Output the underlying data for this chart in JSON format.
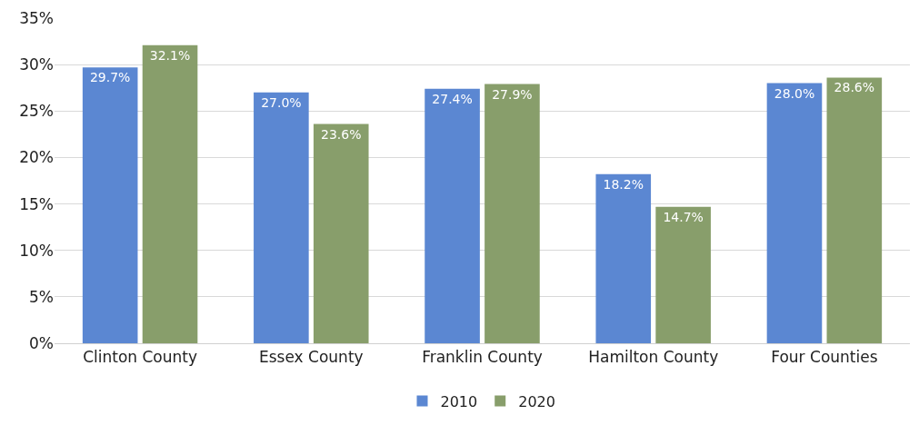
{
  "chart_data": {
    "type": "bar",
    "categories": [
      "Clinton County",
      "Essex County",
      "Franklin County",
      "Hamilton County",
      "Four Counties"
    ],
    "series": [
      {
        "name": "2010",
        "color": "#5b87d2",
        "values": [
          29.7,
          27.0,
          27.4,
          18.2,
          28.0
        ],
        "value_labels": [
          "29.7%",
          "27.0%",
          "27.4%",
          "18.2%",
          "28.0%"
        ]
      },
      {
        "name": "2020",
        "color": "#889e6b",
        "values": [
          32.1,
          23.6,
          27.9,
          14.7,
          28.6
        ],
        "value_labels": [
          "32.1%",
          "23.6%",
          "27.9%",
          "14.7%",
          "28.6%"
        ]
      }
    ],
    "ylim": [
      0,
      35
    ],
    "yticks": [
      {
        "value": 0,
        "label": "0%"
      },
      {
        "value": 5,
        "label": "5%"
      },
      {
        "value": 10,
        "label": "10%"
      },
      {
        "value": 15,
        "label": "15%"
      },
      {
        "value": 20,
        "label": "20%"
      },
      {
        "value": 25,
        "label": "25%"
      },
      {
        "value": 30,
        "label": "30%"
      },
      {
        "value": 35,
        "label": "35%"
      }
    ],
    "grid": "y",
    "legend": "bottom"
  }
}
